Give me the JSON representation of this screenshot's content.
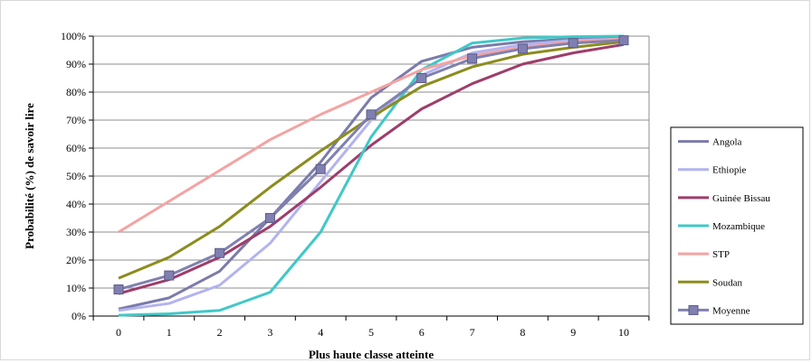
{
  "chart_data": {
    "type": "line",
    "title": "",
    "xlabel": "Plus haute classe atteinte",
    "ylabel": "Probabilité (%) de savoir lire",
    "x": [
      0,
      1,
      2,
      3,
      4,
      5,
      6,
      7,
      8,
      9,
      10
    ],
    "x_tick_labels": [
      "0",
      "1",
      "2",
      "3",
      "4",
      "5",
      "6",
      "7",
      "8",
      "9",
      "10"
    ],
    "ylim": [
      0,
      100
    ],
    "y_tick_labels": [
      "0%",
      "10%",
      "20%",
      "30%",
      "40%",
      "50%",
      "60%",
      "70%",
      "80%",
      "90%",
      "100%"
    ],
    "grid": "horizontal",
    "legend_position": "right",
    "series": [
      {
        "name": "Angola",
        "color": "#7b7bab",
        "marker": "none",
        "values": [
          2.5,
          6.5,
          16,
          35,
          55,
          78,
          91,
          96,
          98,
          99,
          99.5
        ]
      },
      {
        "name": "Ethiopie",
        "color": "#b3b3f0",
        "marker": "none",
        "values": [
          2,
          4.5,
          11,
          26,
          48,
          70,
          86,
          94,
          97,
          98.5,
          99
        ]
      },
      {
        "name": "Guinée Bissau",
        "color": "#9e3d6b",
        "marker": "none",
        "values": [
          8,
          13,
          21,
          32,
          46,
          61,
          74,
          83,
          90,
          94,
          97
        ]
      },
      {
        "name": "Mozambique",
        "color": "#40c8c8",
        "marker": "none",
        "values": [
          0.3,
          0.8,
          2,
          8.5,
          30,
          64,
          88,
          97.5,
          99.3,
          99.8,
          100
        ]
      },
      {
        "name": "STP",
        "color": "#f4a3a3",
        "marker": "none",
        "values": [
          30,
          41,
          52,
          63,
          72,
          80,
          88,
          93,
          96,
          98,
          99
        ]
      },
      {
        "name": "Soudan",
        "color": "#8c8c1e",
        "marker": "none",
        "values": [
          13.5,
          21,
          32,
          46,
          59,
          71,
          82,
          89,
          93.5,
          96,
          98
        ]
      },
      {
        "name": "Moyenne",
        "color": "#8080b0",
        "marker": "square",
        "values": [
          9.5,
          14.5,
          22.5,
          35,
          52.5,
          72,
          85,
          92,
          95.5,
          97.5,
          98.5
        ]
      }
    ]
  }
}
